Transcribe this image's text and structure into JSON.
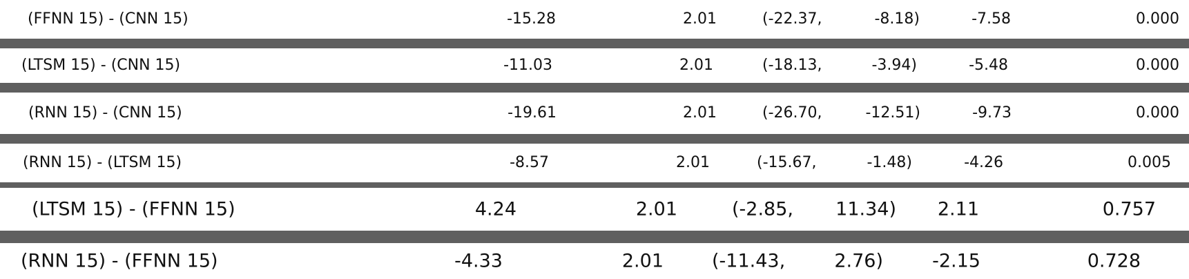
{
  "table": {
    "rows": [
      {
        "label": "(FFNN 15) - (CNN 15)",
        "difference": "-15.28",
        "se": "2.01",
        "ci_low": "(-22.37,",
        "ci_high": "-8.18)",
        "t_value": "-7.58",
        "p_value": "0.000"
      },
      {
        "label": "(LTSM 15) - (CNN 15)",
        "difference": "-11.03",
        "se": "2.01",
        "ci_low": "(-18.13,",
        "ci_high": "-3.94)",
        "t_value": "-5.48",
        "p_value": "0.000"
      },
      {
        "label": "(RNN 15) - (CNN 15)",
        "difference": "-19.61",
        "se": "2.01",
        "ci_low": "(-26.70,",
        "ci_high": "-12.51)",
        "t_value": "-9.73",
        "p_value": "0.000"
      },
      {
        "label": "(RNN 15) - (LTSM 15)",
        "difference": "-8.57",
        "se": "2.01",
        "ci_low": "(-15.67,",
        "ci_high": "-1.48)",
        "t_value": "-4.26",
        "p_value": "0.005"
      },
      {
        "label": "(LTSM 15) - (FFNN 15)",
        "difference": "4.24",
        "se": "2.01",
        "ci_low": "(-2.85,",
        "ci_high": "11.34)",
        "t_value": "2.11",
        "p_value": "0.757"
      },
      {
        "label": "(RNN 15) - (FFNN 15)",
        "difference": "-4.33",
        "se": "2.01",
        "ci_low": "(-11.43,",
        "ci_high": "2.76)",
        "t_value": "-2.15",
        "p_value": "0.728"
      }
    ]
  }
}
